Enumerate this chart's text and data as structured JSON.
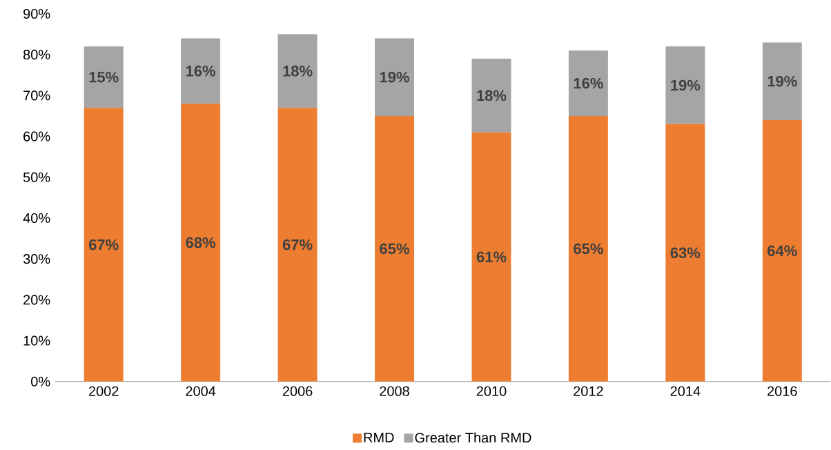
{
  "chart_data": {
    "type": "bar",
    "stacked": true,
    "categories": [
      "2002",
      "2004",
      "2006",
      "2008",
      "2010",
      "2012",
      "2014",
      "2016"
    ],
    "series": [
      {
        "name": "RMD",
        "color": "#ed7d31",
        "values": [
          67,
          68,
          67,
          65,
          61,
          65,
          63,
          64
        ],
        "value_labels": [
          "67%",
          "68%",
          "67%",
          "65%",
          "61%",
          "65%",
          "63%",
          "64%"
        ]
      },
      {
        "name": "Greater Than RMD",
        "color": "#a5a5a5",
        "values": [
          15,
          16,
          18,
          19,
          18,
          16,
          19,
          19
        ],
        "value_labels": [
          "15%",
          "16%",
          "18%",
          "19%",
          "18%",
          "16%",
          "19%",
          "19%"
        ]
      }
    ],
    "ylim": [
      0,
      90
    ],
    "yticks": [
      {
        "value": 0,
        "label": "0%"
      },
      {
        "value": 10,
        "label": "10%"
      },
      {
        "value": 20,
        "label": "20%"
      },
      {
        "value": 30,
        "label": "30%"
      },
      {
        "value": 40,
        "label": "40%"
      },
      {
        "value": 50,
        "label": "50%"
      },
      {
        "value": 60,
        "label": "60%"
      },
      {
        "value": 70,
        "label": "70%"
      },
      {
        "value": 80,
        "label": "80%"
      },
      {
        "value": 90,
        "label": "90%"
      }
    ],
    "grid": false,
    "legend": "bottom"
  }
}
